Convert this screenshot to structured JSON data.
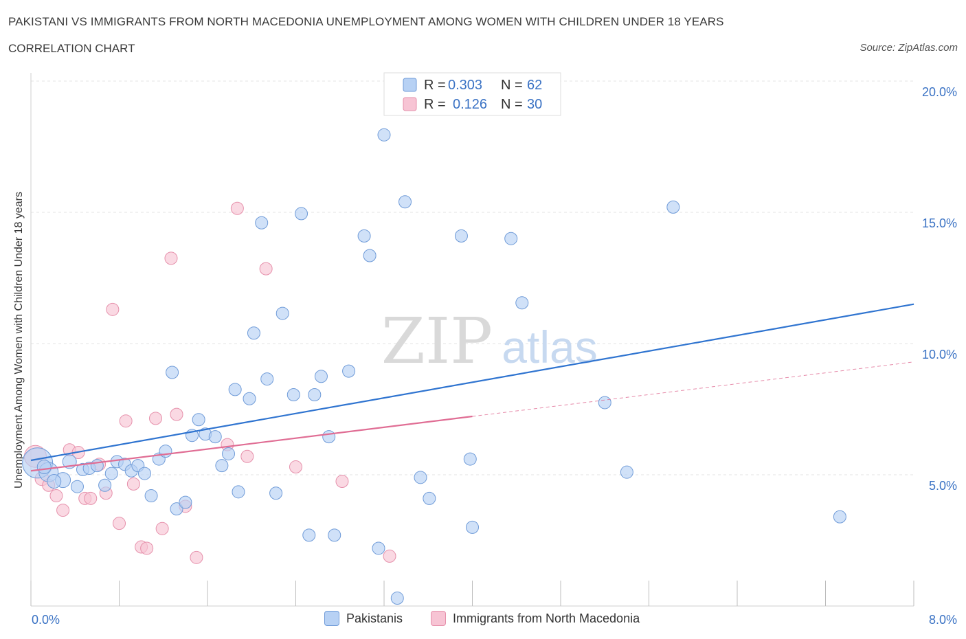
{
  "header": {
    "title": "PAKISTANI VS IMMIGRANTS FROM NORTH MACEDONIA UNEMPLOYMENT AMONG WOMEN WITH CHILDREN UNDER 18 YEARS",
    "subtitle": "CORRELATION CHART",
    "source": "Source: ZipAtlas.com"
  },
  "legend": {
    "r_label": "R =",
    "n_label": "N =",
    "series1": {
      "r": "0.303",
      "n": "62"
    },
    "series2": {
      "r": "0.126",
      "n": "30"
    }
  },
  "bottom_legend": {
    "series1": "Pakistanis",
    "series2": "Immigrants from North Macedonia"
  },
  "watermark": {
    "zip": "ZIP",
    "atlas": "atlas"
  },
  "colors": {
    "blue_fill": "#b7d1f4",
    "blue_stroke": "#6f9bd8",
    "blue_line": "#2f74d0",
    "pink_fill": "#f7c4d4",
    "pink_stroke": "#e690ab",
    "pink_line": "#e06d94",
    "tick_color": "#3a72c4"
  },
  "chart_data": {
    "type": "scatter",
    "title": "PAKISTANI VS IMMIGRANTS FROM NORTH MACEDONIA UNEMPLOYMENT AMONG WOMEN WITH CHILDREN UNDER 18 YEARS",
    "xlabel": "",
    "ylabel": "Unemployment Among Women with Children Under 18 years",
    "xlim": [
      0,
      8
    ],
    "ylim": [
      0,
      20
    ],
    "x_tick_labels": [
      "0.0%",
      "8.0%"
    ],
    "y_ticks": [
      5,
      10,
      15,
      20
    ],
    "y_tick_labels": [
      "5.0%",
      "10.0%",
      "15.0%",
      "20.0%"
    ],
    "series": [
      {
        "name": "Pakistanis",
        "r": 0.303,
        "n": 62,
        "trend": {
          "x0": 0.0,
          "y0": 5.55,
          "x1": 8.0,
          "y1": 11.5,
          "dashed_from": null
        },
        "points": [
          {
            "x": 0.06,
            "y": 5.45,
            "s": 22
          },
          {
            "x": 0.16,
            "y": 5.1,
            "s": 14
          },
          {
            "x": 0.29,
            "y": 4.8,
            "s": 11
          },
          {
            "x": 0.35,
            "y": 5.5,
            "s": 10
          },
          {
            "x": 0.21,
            "y": 4.75,
            "s": 10
          },
          {
            "x": 0.42,
            "y": 4.55,
            "s": 9
          },
          {
            "x": 0.47,
            "y": 5.2,
            "s": 9
          },
          {
            "x": 0.53,
            "y": 5.25,
            "s": 9
          },
          {
            "x": 0.6,
            "y": 5.35,
            "s": 9
          },
          {
            "x": 0.67,
            "y": 4.6,
            "s": 9
          },
          {
            "x": 0.73,
            "y": 5.05,
            "s": 9
          },
          {
            "x": 0.78,
            "y": 5.5,
            "s": 9
          },
          {
            "x": 0.85,
            "y": 5.4,
            "s": 9
          },
          {
            "x": 0.91,
            "y": 5.15,
            "s": 9
          },
          {
            "x": 0.97,
            "y": 5.35,
            "s": 9
          },
          {
            "x": 1.03,
            "y": 5.05,
            "s": 9
          },
          {
            "x": 1.09,
            "y": 4.2,
            "s": 9
          },
          {
            "x": 1.16,
            "y": 5.6,
            "s": 9
          },
          {
            "x": 1.22,
            "y": 5.9,
            "s": 9
          },
          {
            "x": 1.28,
            "y": 8.9,
            "s": 9
          },
          {
            "x": 1.32,
            "y": 3.7,
            "s": 9
          },
          {
            "x": 1.4,
            "y": 3.95,
            "s": 9
          },
          {
            "x": 1.46,
            "y": 6.5,
            "s": 9
          },
          {
            "x": 1.52,
            "y": 7.1,
            "s": 9
          },
          {
            "x": 1.58,
            "y": 6.55,
            "s": 9
          },
          {
            "x": 1.67,
            "y": 6.45,
            "s": 9
          },
          {
            "x": 1.73,
            "y": 5.35,
            "s": 9
          },
          {
            "x": 1.79,
            "y": 5.8,
            "s": 9
          },
          {
            "x": 1.85,
            "y": 8.25,
            "s": 9
          },
          {
            "x": 1.88,
            "y": 4.35,
            "s": 9
          },
          {
            "x": 1.98,
            "y": 7.9,
            "s": 9
          },
          {
            "x": 2.02,
            "y": 10.4,
            "s": 9
          },
          {
            "x": 2.09,
            "y": 14.6,
            "s": 9
          },
          {
            "x": 2.14,
            "y": 8.65,
            "s": 9
          },
          {
            "x": 2.22,
            "y": 4.3,
            "s": 9
          },
          {
            "x": 2.28,
            "y": 11.15,
            "s": 9
          },
          {
            "x": 2.38,
            "y": 8.05,
            "s": 9
          },
          {
            "x": 2.45,
            "y": 14.95,
            "s": 9
          },
          {
            "x": 2.52,
            "y": 2.7,
            "s": 9
          },
          {
            "x": 2.57,
            "y": 8.05,
            "s": 9
          },
          {
            "x": 2.63,
            "y": 8.75,
            "s": 9
          },
          {
            "x": 2.7,
            "y": 6.45,
            "s": 9
          },
          {
            "x": 2.75,
            "y": 2.7,
            "s": 9
          },
          {
            "x": 2.88,
            "y": 8.95,
            "s": 9
          },
          {
            "x": 3.02,
            "y": 14.1,
            "s": 9
          },
          {
            "x": 3.07,
            "y": 13.35,
            "s": 9
          },
          {
            "x": 3.15,
            "y": 2.2,
            "s": 9
          },
          {
            "x": 3.2,
            "y": 17.95,
            "s": 9
          },
          {
            "x": 3.32,
            "y": 0.3,
            "s": 9
          },
          {
            "x": 3.39,
            "y": 15.4,
            "s": 9
          },
          {
            "x": 3.53,
            "y": 4.9,
            "s": 9
          },
          {
            "x": 3.61,
            "y": 4.1,
            "s": 9
          },
          {
            "x": 3.9,
            "y": 14.1,
            "s": 9
          },
          {
            "x": 3.98,
            "y": 5.6,
            "s": 9
          },
          {
            "x": 4.0,
            "y": 3.0,
            "s": 9
          },
          {
            "x": 4.35,
            "y": 14.0,
            "s": 9
          },
          {
            "x": 4.45,
            "y": 11.55,
            "s": 9
          },
          {
            "x": 5.2,
            "y": 7.75,
            "s": 9
          },
          {
            "x": 5.4,
            "y": 5.1,
            "s": 9
          },
          {
            "x": 5.82,
            "y": 15.2,
            "s": 9
          },
          {
            "x": 7.33,
            "y": 3.4,
            "s": 9
          },
          {
            "x": 0.12,
            "y": 5.3,
            "s": 10
          }
        ]
      },
      {
        "name": "Immigrants from North Macedonia",
        "r": 0.126,
        "n": 30,
        "trend": {
          "x0": 0.0,
          "y0": 5.15,
          "x1": 8.0,
          "y1": 9.3,
          "dashed_from": 4.0
        },
        "points": [
          {
            "x": 0.04,
            "y": 5.7,
            "s": 16
          },
          {
            "x": 0.1,
            "y": 4.85,
            "s": 10
          },
          {
            "x": 0.16,
            "y": 4.6,
            "s": 9
          },
          {
            "x": 0.23,
            "y": 4.2,
            "s": 9
          },
          {
            "x": 0.29,
            "y": 3.65,
            "s": 9
          },
          {
            "x": 0.35,
            "y": 5.95,
            "s": 9
          },
          {
            "x": 0.43,
            "y": 5.85,
            "s": 9
          },
          {
            "x": 0.49,
            "y": 4.1,
            "s": 9
          },
          {
            "x": 0.54,
            "y": 4.1,
            "s": 9
          },
          {
            "x": 0.62,
            "y": 5.4,
            "s": 9
          },
          {
            "x": 0.68,
            "y": 4.3,
            "s": 9
          },
          {
            "x": 0.74,
            "y": 11.3,
            "s": 9
          },
          {
            "x": 0.8,
            "y": 3.15,
            "s": 9
          },
          {
            "x": 0.86,
            "y": 7.05,
            "s": 9
          },
          {
            "x": 0.93,
            "y": 4.65,
            "s": 9
          },
          {
            "x": 1.0,
            "y": 2.25,
            "s": 9
          },
          {
            "x": 1.05,
            "y": 2.2,
            "s": 9
          },
          {
            "x": 1.13,
            "y": 7.15,
            "s": 9
          },
          {
            "x": 1.19,
            "y": 2.95,
            "s": 9
          },
          {
            "x": 1.27,
            "y": 13.25,
            "s": 9
          },
          {
            "x": 1.32,
            "y": 7.3,
            "s": 9
          },
          {
            "x": 1.4,
            "y": 3.8,
            "s": 9
          },
          {
            "x": 1.5,
            "y": 1.85,
            "s": 9
          },
          {
            "x": 1.78,
            "y": 6.15,
            "s": 9
          },
          {
            "x": 1.87,
            "y": 15.15,
            "s": 9
          },
          {
            "x": 1.96,
            "y": 5.7,
            "s": 9
          },
          {
            "x": 2.13,
            "y": 12.85,
            "s": 9
          },
          {
            "x": 2.4,
            "y": 5.3,
            "s": 9
          },
          {
            "x": 2.82,
            "y": 4.75,
            "s": 9
          },
          {
            "x": 3.25,
            "y": 1.9,
            "s": 9
          }
        ]
      }
    ]
  }
}
